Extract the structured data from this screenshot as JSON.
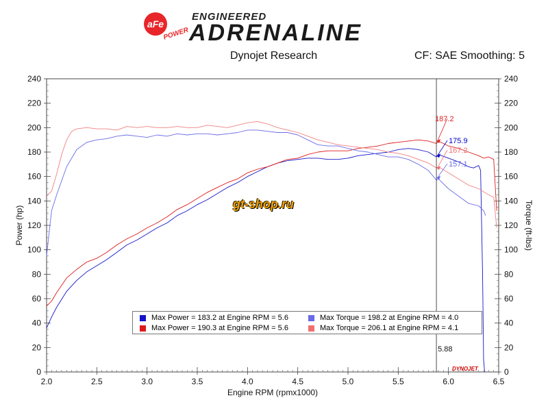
{
  "header": {
    "logo_badge": "aFe",
    "logo_power": "POWER",
    "logo_top": "ENGINEERED",
    "logo_main": "ADRENALINE",
    "left_title": "Dynojet Research",
    "right_title": "CF: SAE Smoothing: 5"
  },
  "watermark": "gt-shop.ru",
  "dyno_mark": "DYNOJET",
  "chart_data": {
    "type": "line",
    "xlabel": "Engine RPM (rpmx1000)",
    "ylabel": "Power (hp)",
    "ylabel_right": "Torque (ft-lbs)",
    "xlim": [
      2.0,
      6.5
    ],
    "ylim": [
      0,
      240
    ],
    "y2lim": [
      0,
      240
    ],
    "x_ticks": [
      "2.0",
      "2.5",
      "3.0",
      "3.5",
      "4.0",
      "4.5",
      "5.0",
      "5.5",
      "6.0",
      "6.5"
    ],
    "y_ticks": [
      "0",
      "20",
      "40",
      "60",
      "80",
      "100",
      "120",
      "140",
      "160",
      "180",
      "200",
      "220",
      "240"
    ],
    "cursor_x": 5.88,
    "cursor_label": "5.88",
    "cursor_values": [
      {
        "label": "187.2",
        "y": 189,
        "color": "#e02020"
      },
      {
        "label": "175.9",
        "y": 177,
        "color": "#0000cc"
      },
      {
        "label": "167.2",
        "y": 167,
        "color": "#f07070"
      },
      {
        "label": "157.1",
        "y": 159,
        "color": "#6a6ae8"
      }
    ],
    "series": [
      {
        "id": "power_blue",
        "color": "#1414c8",
        "width": 0.9,
        "x": [
          2.0,
          2.05,
          2.1,
          2.2,
          2.3,
          2.4,
          2.5,
          2.6,
          2.7,
          2.8,
          2.9,
          3.0,
          3.1,
          3.2,
          3.3,
          3.4,
          3.5,
          3.6,
          3.7,
          3.8,
          3.9,
          4.0,
          4.1,
          4.2,
          4.3,
          4.4,
          4.5,
          4.6,
          4.7,
          4.8,
          4.9,
          5.0,
          5.1,
          5.2,
          5.3,
          5.4,
          5.5,
          5.6,
          5.7,
          5.8,
          5.88,
          5.9,
          6.0,
          6.1,
          6.2,
          6.25,
          6.3,
          6.32,
          6.34,
          6.35,
          6.36
        ],
        "y": [
          36,
          45,
          53,
          66,
          75,
          82,
          87,
          92,
          98,
          104,
          108,
          113,
          118,
          122,
          128,
          132,
          137,
          141,
          146,
          151,
          155,
          160,
          164,
          168,
          171,
          173,
          174,
          175,
          175,
          174,
          174,
          175,
          177,
          178,
          179,
          180,
          182,
          183,
          182,
          180,
          176,
          178,
          175,
          172,
          168,
          167,
          169,
          165,
          80,
          10,
          0
        ]
      },
      {
        "id": "power_red",
        "color": "#dd1a1a",
        "width": 0.9,
        "x": [
          2.0,
          2.05,
          2.1,
          2.2,
          2.3,
          2.4,
          2.5,
          2.6,
          2.7,
          2.8,
          2.9,
          3.0,
          3.1,
          3.2,
          3.3,
          3.4,
          3.5,
          3.6,
          3.7,
          3.8,
          3.9,
          4.0,
          4.1,
          4.2,
          4.3,
          4.4,
          4.5,
          4.6,
          4.7,
          4.8,
          4.9,
          5.0,
          5.1,
          5.2,
          5.3,
          5.4,
          5.5,
          5.6,
          5.7,
          5.8,
          5.88,
          5.9,
          6.0,
          6.1,
          6.2,
          6.3,
          6.35,
          6.4,
          6.45,
          6.48
        ],
        "y": [
          54,
          58,
          65,
          77,
          84,
          90,
          93,
          98,
          104,
          109,
          113,
          118,
          122,
          127,
          133,
          137,
          142,
          147,
          151,
          155,
          158,
          163,
          166,
          168,
          171,
          174,
          175,
          178,
          180,
          181,
          181,
          181,
          183,
          184,
          185,
          187,
          188,
          189,
          190,
          189,
          187,
          189,
          185,
          183,
          180,
          177,
          175,
          176,
          174,
          132
        ]
      },
      {
        "id": "torque_blue",
        "color": "#6a6ae8",
        "width": 0.9,
        "x": [
          2.0,
          2.05,
          2.1,
          2.2,
          2.3,
          2.4,
          2.5,
          2.6,
          2.7,
          2.8,
          2.9,
          3.0,
          3.1,
          3.2,
          3.3,
          3.4,
          3.5,
          3.6,
          3.7,
          3.8,
          3.9,
          4.0,
          4.1,
          4.2,
          4.3,
          4.4,
          4.5,
          4.6,
          4.7,
          4.8,
          4.9,
          5.0,
          5.1,
          5.2,
          5.3,
          5.4,
          5.5,
          5.6,
          5.7,
          5.8,
          5.88,
          5.9,
          6.0,
          6.1,
          6.2,
          6.3,
          6.35,
          6.37
        ],
        "y": [
          95,
          132,
          145,
          168,
          182,
          188,
          190,
          191,
          193,
          194,
          193,
          192,
          194,
          193,
          195,
          194,
          195,
          195,
          194,
          195,
          196,
          198,
          198,
          197,
          196,
          196,
          194,
          190,
          186,
          185,
          185,
          183,
          181,
          180,
          178,
          176,
          176,
          174,
          170,
          165,
          157,
          158,
          150,
          144,
          138,
          136,
          132,
          128
        ]
      },
      {
        "id": "torque_red",
        "color": "#f08080",
        "width": 0.9,
        "x": [
          2.0,
          2.05,
          2.1,
          2.15,
          2.2,
          2.25,
          2.3,
          2.4,
          2.5,
          2.6,
          2.7,
          2.8,
          2.9,
          3.0,
          3.1,
          3.2,
          3.3,
          3.4,
          3.5,
          3.6,
          3.7,
          3.8,
          3.9,
          4.0,
          4.1,
          4.2,
          4.3,
          4.4,
          4.5,
          4.6,
          4.7,
          4.8,
          4.9,
          5.0,
          5.1,
          5.2,
          5.3,
          5.4,
          5.5,
          5.6,
          5.7,
          5.8,
          5.88,
          5.9,
          6.0,
          6.1,
          6.2,
          6.3,
          6.4,
          6.45,
          6.48
        ],
        "y": [
          144,
          148,
          162,
          178,
          190,
          197,
          199,
          200,
          199,
          199,
          198,
          201,
          200,
          201,
          200,
          200,
          201,
          200,
          200,
          202,
          201,
          200,
          202,
          204,
          205,
          203,
          200,
          198,
          196,
          193,
          190,
          188,
          186,
          185,
          184,
          183,
          182,
          180,
          179,
          177,
          174,
          171,
          167,
          168,
          163,
          158,
          153,
          150,
          145,
          143,
          118
        ]
      }
    ],
    "legend": [
      {
        "text": "Max Power = 183.2 at Engine RPM = 5.6",
        "color": "#1414c8"
      },
      {
        "text": "Max Torque = 198.2 at Engine RPM = 4.0",
        "color": "#6a6ae8"
      },
      {
        "text": "Max Power = 190.3 at Engine RPM = 5.6",
        "color": "#dd1a1a"
      },
      {
        "text": "Max Torque = 206.1 at Engine RPM = 4.1",
        "color": "#f07070"
      }
    ]
  }
}
